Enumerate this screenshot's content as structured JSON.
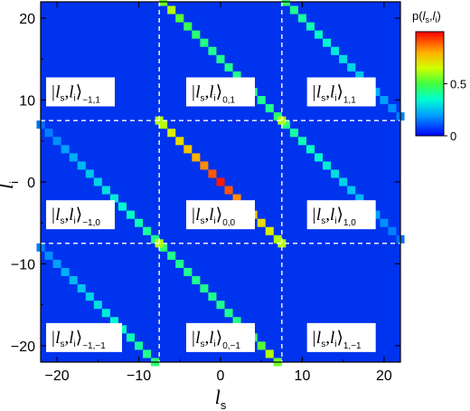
{
  "chart_data": {
    "type": "heatmap",
    "title": "",
    "xlabel": "l",
    "xlabel_sub": "s",
    "ylabel": "l",
    "ylabel_sub": "i",
    "xlim": [
      -22,
      22
    ],
    "ylim": [
      -22,
      22
    ],
    "x_ticks": [
      -20,
      -10,
      0,
      10,
      20
    ],
    "y_ticks": [
      -20,
      -10,
      0,
      10,
      20
    ],
    "colorbar": {
      "title_main": "p(",
      "title_var1": "l",
      "title_sub1": "s",
      "title_sep": ",",
      "title_var2": "l",
      "title_sub2": "i",
      "title_close": ")",
      "ticks": [
        {
          "value": 0.5,
          "label": "0.5"
        },
        {
          "value": 0.0,
          "label": "0"
        }
      ],
      "colors": [
        "#0000ff",
        "#00ccff",
        "#00ff80",
        "#ccff00",
        "#ffcc00",
        "#ff6600",
        "#ff0000"
      ]
    },
    "background_color": "#0033ee",
    "block_divisions_x": [
      -7.5,
      7.5
    ],
    "block_divisions_y": [
      -7.5,
      7.5
    ],
    "diagonals": [
      {
        "offset": 0,
        "description": "central anti-diagonal, x + y = 0",
        "x_range": [
          -7,
          7
        ],
        "values": [
          0.62,
          0.68,
          0.72,
          0.76,
          0.8,
          0.84,
          0.9,
          0.97,
          0.9,
          0.84,
          0.8,
          0.76,
          0.72,
          0.68,
          0.62
        ]
      },
      {
        "offset": 15,
        "description": "x + y = 15",
        "x_range": [
          -7,
          22
        ],
        "values": [
          0.55,
          0.62,
          0.52,
          0.48,
          0.45,
          0.43,
          0.42,
          0.42,
          0.42,
          0.42,
          0.42,
          0.42,
          0.42,
          0.42,
          0.45,
          0.42,
          0.4,
          0.38,
          0.36,
          0.34,
          0.32,
          0.3,
          0.28,
          0.26,
          0.24,
          0.22,
          0.2,
          0.18,
          0.16,
          0.14
        ]
      },
      {
        "offset": -15,
        "description": "x + y = -15",
        "x_range": [
          -22,
          7
        ],
        "values": [
          0.14,
          0.16,
          0.18,
          0.2,
          0.22,
          0.24,
          0.26,
          0.28,
          0.3,
          0.32,
          0.34,
          0.36,
          0.38,
          0.4,
          0.42,
          0.45,
          0.42,
          0.42,
          0.42,
          0.42,
          0.42,
          0.42,
          0.42,
          0.42,
          0.43,
          0.45,
          0.48,
          0.52,
          0.62,
          0.55
        ]
      },
      {
        "offset": 30,
        "description": "x + y = 30",
        "x_range": [
          8,
          22
        ],
        "values": [
          0.45,
          0.42,
          0.4,
          0.38,
          0.36,
          0.34,
          0.32,
          0.3,
          0.28,
          0.26,
          0.24,
          0.22,
          0.2,
          0.18,
          0.16
        ]
      },
      {
        "offset": -30,
        "description": "x + y = -30",
        "x_range": [
          -22,
          -8
        ],
        "values": [
          0.16,
          0.18,
          0.2,
          0.22,
          0.24,
          0.26,
          0.28,
          0.3,
          0.32,
          0.34,
          0.36,
          0.38,
          0.4,
          0.42,
          0.45
        ]
      },
      {
        "offset": 45,
        "description": "x + y = 45 (top-right corner)",
        "x_range": [
          23,
          22
        ],
        "values": []
      },
      {
        "offset": -45,
        "description": "x + y = -45 (bottom-left corner)",
        "x_range": [
          -22,
          -23
        ],
        "values": []
      }
    ],
    "crossings": [
      {
        "x": -7.5,
        "y": 7.5,
        "value": 0.62
      },
      {
        "x": 7.5,
        "y": -7.5,
        "value": 0.62
      },
      {
        "x": -7.5,
        "y": -7.5,
        "value": 0.62
      },
      {
        "x": 7.5,
        "y": 7.5,
        "value": 0.62
      }
    ],
    "annotations": [
      {
        "block": [
          -1,
          1
        ],
        "ket": "|l",
        "sub_s": "s",
        "comma": ",",
        "l2": "l",
        "sub_i": "i",
        "close": "⟩",
        "index": "−1,1"
      },
      {
        "block": [
          0,
          1
        ],
        "ket": "|l",
        "sub_s": "s",
        "comma": ",",
        "l2": "l",
        "sub_i": "i",
        "close": "⟩",
        "index": "0,1"
      },
      {
        "block": [
          1,
          1
        ],
        "ket": "|l",
        "sub_s": "s",
        "comma": ",",
        "l2": "l",
        "sub_i": "i",
        "close": "⟩",
        "index": "1,1"
      },
      {
        "block": [
          -1,
          0
        ],
        "ket": "|l",
        "sub_s": "s",
        "comma": ",",
        "l2": "l",
        "sub_i": "i",
        "close": "⟩",
        "index": "−1,0"
      },
      {
        "block": [
          0,
          0
        ],
        "ket": "|l",
        "sub_s": "s",
        "comma": ",",
        "l2": "l",
        "sub_i": "i",
        "close": "⟩",
        "index": "0,0"
      },
      {
        "block": [
          1,
          0
        ],
        "ket": "|l",
        "sub_s": "s",
        "comma": ",",
        "l2": "l",
        "sub_i": "i",
        "close": "⟩",
        "index": "1,0"
      },
      {
        "block": [
          -1,
          -1
        ],
        "ket": "|l",
        "sub_s": "s",
        "comma": ",",
        "l2": "l",
        "sub_i": "i",
        "close": "⟩",
        "index": "−1,−1"
      },
      {
        "block": [
          0,
          -1
        ],
        "ket": "|l",
        "sub_s": "s",
        "comma": ",",
        "l2": "l",
        "sub_i": "i",
        "close": "⟩",
        "index": "0,−1"
      },
      {
        "block": [
          1,
          -1
        ],
        "ket": "|l",
        "sub_s": "s",
        "comma": ",",
        "l2": "l",
        "sub_i": "i",
        "close": "⟩",
        "index": "1,−1"
      }
    ]
  }
}
